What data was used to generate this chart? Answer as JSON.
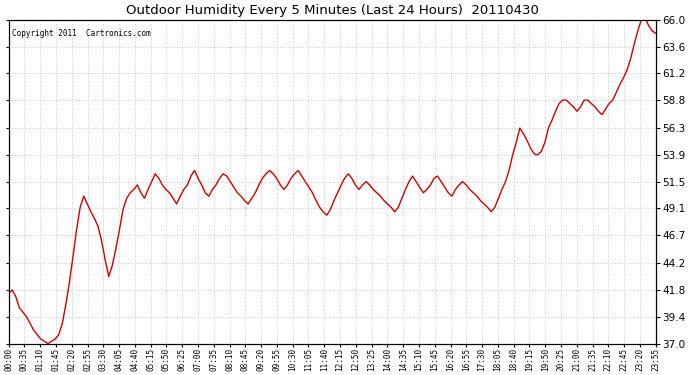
{
  "title": "Outdoor Humidity Every 5 Minutes (Last 24 Hours)  20110430",
  "copyright_text": "Copyright 2011  Cartronics.com",
  "line_color": "#cc0000",
  "bg_color": "#ffffff",
  "plot_bg_color": "#ffffff",
  "grid_color": "#c8c8c8",
  "ylim": [
    37.0,
    66.0
  ],
  "yticks": [
    37.0,
    39.4,
    41.8,
    44.2,
    46.7,
    49.1,
    51.5,
    53.9,
    56.3,
    58.8,
    61.2,
    63.6,
    66.0
  ],
  "xtick_labels": [
    "00:00",
    "00:35",
    "01:10",
    "01:45",
    "02:20",
    "02:55",
    "03:30",
    "04:05",
    "04:40",
    "05:15",
    "05:50",
    "06:25",
    "07:00",
    "07:35",
    "08:10",
    "08:45",
    "09:20",
    "09:55",
    "10:30",
    "11:05",
    "11:40",
    "12:15",
    "12:50",
    "13:25",
    "14:00",
    "14:35",
    "15:10",
    "15:45",
    "16:20",
    "16:55",
    "17:30",
    "18:05",
    "18:40",
    "19:15",
    "19:50",
    "20:25",
    "21:00",
    "21:35",
    "22:10",
    "22:45",
    "23:20",
    "23:55"
  ],
  "humidity_data": [
    41.5,
    41.8,
    41.2,
    40.2,
    39.8,
    39.4,
    38.8,
    38.2,
    37.8,
    37.4,
    37.2,
    37.0,
    37.2,
    37.4,
    37.8,
    38.8,
    40.5,
    42.5,
    44.8,
    47.2,
    49.2,
    50.2,
    49.5,
    48.8,
    48.2,
    47.5,
    46.2,
    44.5,
    43.0,
    44.0,
    45.5,
    47.2,
    49.0,
    50.0,
    50.5,
    50.8,
    51.2,
    50.5,
    50.0,
    50.8,
    51.5,
    52.2,
    51.8,
    51.2,
    50.8,
    50.5,
    50.0,
    49.5,
    50.2,
    50.8,
    51.2,
    52.0,
    52.5,
    51.8,
    51.2,
    50.5,
    50.2,
    50.8,
    51.2,
    51.8,
    52.2,
    52.0,
    51.5,
    51.0,
    50.5,
    50.2,
    49.8,
    49.5,
    50.0,
    50.5,
    51.2,
    51.8,
    52.2,
    52.5,
    52.2,
    51.8,
    51.2,
    50.8,
    51.2,
    51.8,
    52.2,
    52.5,
    52.0,
    51.5,
    51.0,
    50.5,
    49.8,
    49.2,
    48.8,
    48.5,
    49.0,
    49.8,
    50.5,
    51.2,
    51.8,
    52.2,
    51.8,
    51.2,
    50.8,
    51.2,
    51.5,
    51.2,
    50.8,
    50.5,
    50.2,
    49.8,
    49.5,
    49.2,
    48.8,
    49.2,
    50.0,
    50.8,
    51.5,
    52.0,
    51.5,
    51.0,
    50.5,
    50.8,
    51.2,
    51.8,
    52.0,
    51.5,
    51.0,
    50.5,
    50.2,
    50.8,
    51.2,
    51.5,
    51.2,
    50.8,
    50.5,
    50.2,
    49.8,
    49.5,
    49.2,
    48.8,
    49.2,
    50.0,
    50.8,
    51.5,
    52.5,
    53.9,
    55.0,
    56.3,
    55.8,
    55.2,
    54.5,
    54.0,
    53.9,
    54.2,
    55.0,
    56.3,
    57.0,
    57.8,
    58.5,
    58.8,
    58.8,
    58.5,
    58.2,
    57.8,
    58.2,
    58.8,
    58.8,
    58.5,
    58.2,
    57.8,
    57.5,
    58.0,
    58.5,
    58.8,
    59.5,
    60.2,
    60.8,
    61.5,
    62.5,
    63.8,
    65.0,
    66.0,
    66.2,
    65.5,
    65.0,
    64.8
  ]
}
